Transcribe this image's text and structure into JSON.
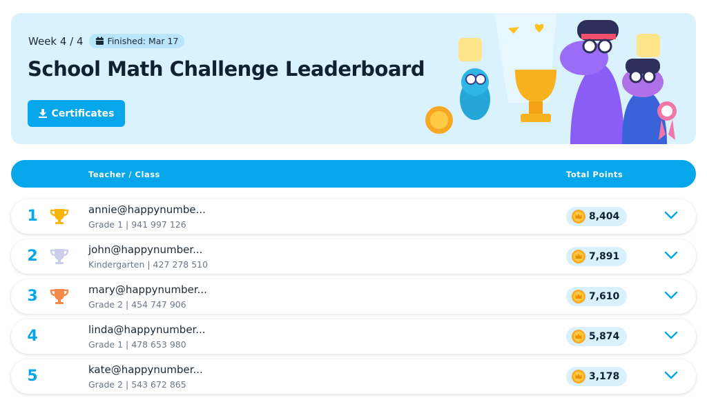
{
  "banner": {
    "week": "Week 4 / 4",
    "finished": "Finished: Mar 17",
    "title": "School Math Challenge Leaderboard",
    "certificates_label": "Certificates"
  },
  "table": {
    "col_teacher": "Teacher / Class",
    "col_points": "Total Points"
  },
  "rows": [
    {
      "rank": "1",
      "trophy": "gold",
      "trophy_color": "#fbb40a",
      "name": "annie@happynumbe...",
      "sub": "Grade 1 | 941 997 126",
      "points": "8,404"
    },
    {
      "rank": "2",
      "trophy": "silver",
      "trophy_color": "#c9cfe8",
      "name": "john@happynumber...",
      "sub": "Kindergarten | 427 278 510",
      "points": "7,891"
    },
    {
      "rank": "3",
      "trophy": "bronze",
      "trophy_color": "#f5894a",
      "name": "mary@happynumber...",
      "sub": "Grade 2 | 454 747 906",
      "points": "7,610"
    },
    {
      "rank": "4",
      "trophy": null,
      "name": "linda@happynumber...",
      "sub": "Grade 1 | 478 653 980",
      "points": "5,874"
    },
    {
      "rank": "5",
      "trophy": null,
      "name": "kate@happynumber...",
      "sub": "Grade 2 | 543 672 865",
      "points": "3,178"
    }
  ],
  "colors": {
    "accent": "#05a7ea",
    "banner_bg": "#daf2fd",
    "coin": "#f9a825"
  }
}
